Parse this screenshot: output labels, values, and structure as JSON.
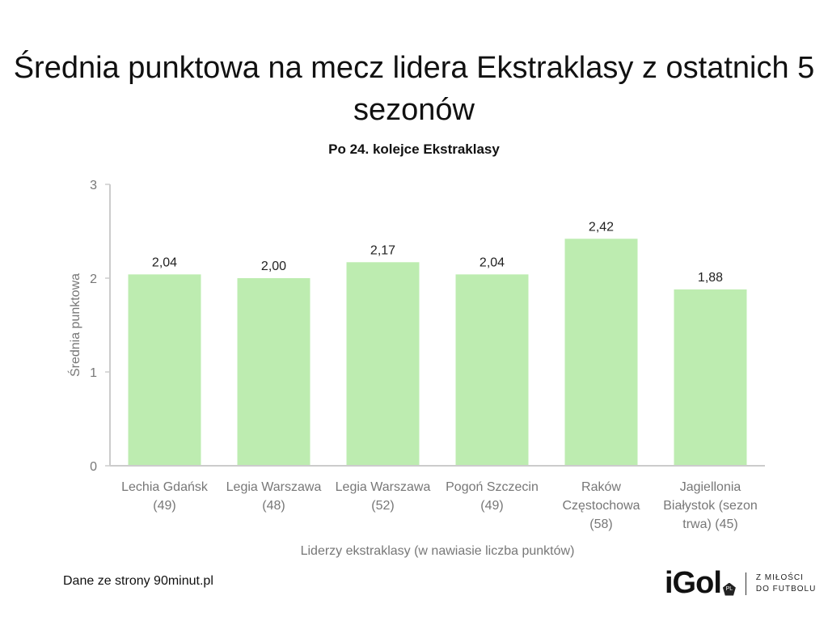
{
  "chart_data": {
    "type": "bar",
    "title": "Średnia punktowa na mecz lidera Ekstraklasy z ostatnich 5 sezonów",
    "subtitle": "Po 24. kolejce Ekstraklasy",
    "xlabel": "Liderzy ekstraklasy (w nawiasie liczba punktów)",
    "ylabel": "Średnia punktowa",
    "ylim": [
      0,
      3
    ],
    "yticks": [
      "0",
      "1",
      "2",
      "3"
    ],
    "categories": [
      [
        "Lechia Gdańsk",
        "(49)"
      ],
      [
        "Legia Warszawa",
        "(48)"
      ],
      [
        "Legia Warszawa",
        "(52)"
      ],
      [
        "Pogoń Szczecin",
        "(49)"
      ],
      [
        "Raków",
        "Częstochowa",
        "(58)"
      ],
      [
        "Jagiellonia",
        "Białystok (sezon",
        "trwa) (45)"
      ]
    ],
    "values": [
      2.04,
      2.0,
      2.17,
      2.04,
      2.42,
      1.88
    ],
    "labels": [
      "2,04",
      "2,00",
      "2,17",
      "2,04",
      "2,42",
      "1,88"
    ],
    "bar_color": "#bdecb0",
    "grid": false
  },
  "footer": {
    "source": "Dane ze strony 90minut.pl",
    "logo": "iGol",
    "logo_badge": "PL",
    "tagline_1": "Z MIŁOŚCI",
    "tagline_2": "DO FUTBOLU"
  }
}
